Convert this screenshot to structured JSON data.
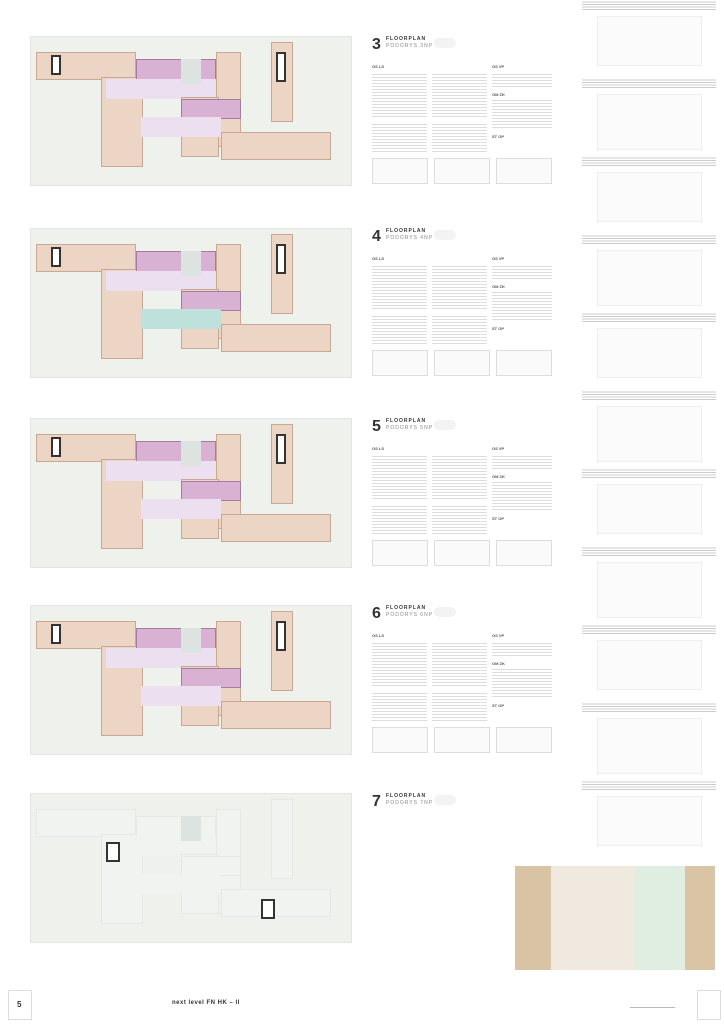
{
  "floors": [
    {
      "num": "3",
      "title": "FLOORPLAN",
      "subtitle": "PODORYS 3NP"
    },
    {
      "num": "4",
      "title": "FLOORPLAN",
      "subtitle": "PODORYS 4NP"
    },
    {
      "num": "5",
      "title": "FLOORPLAN",
      "subtitle": "PODORYS 5NP"
    },
    {
      "num": "6",
      "title": "FLOORPLAN",
      "subtitle": "PODORYS 6NP"
    },
    {
      "num": "7",
      "title": "FLOORPLAN",
      "subtitle": "PODORYS 7NP"
    }
  ],
  "sections": [
    "OS LS",
    "OS VP",
    "OM ZK",
    "ST OP"
  ],
  "colors": {
    "wards": "#ecd5c4",
    "highlight": "#d9b2d3",
    "circulation": "#ece0f0",
    "accent": "#bfe1dc"
  },
  "footer": {
    "page": "5",
    "title": "next level FN HK – II"
  }
}
